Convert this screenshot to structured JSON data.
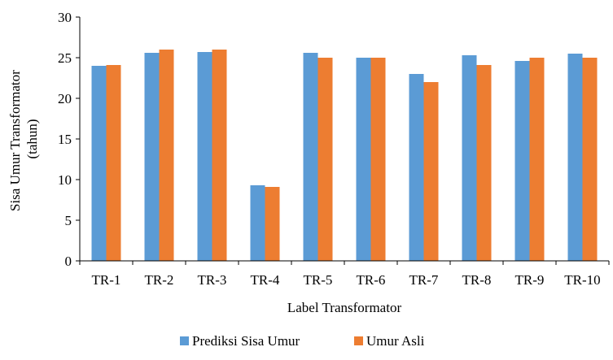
{
  "chart_data": {
    "type": "bar",
    "categories": [
      "TR-1",
      "TR-2",
      "TR-3",
      "TR-4",
      "TR-5",
      "TR-6",
      "TR-7",
      "TR-8",
      "TR-9",
      "TR-10"
    ],
    "series": [
      {
        "name": "Prediksi Sisa Umur",
        "color": "#5b9bd5",
        "values": [
          24.0,
          25.6,
          25.7,
          9.3,
          25.6,
          25.0,
          23.0,
          25.3,
          24.6,
          25.5
        ]
      },
      {
        "name": "Umur Asli",
        "color": "#ed7d31",
        "values": [
          24.1,
          26.0,
          26.0,
          9.1,
          25.0,
          25.0,
          22.0,
          24.1,
          25.0,
          25.0
        ]
      }
    ],
    "title": "",
    "xlabel": "Label Transformator",
    "ylabel_line1": "Sisa Umur Transformator",
    "ylabel_line2": "(tahun)",
    "ylim": [
      0,
      30
    ],
    "yticks": [
      0,
      5,
      10,
      15,
      20,
      25,
      30
    ],
    "grid": false,
    "legend_position": "bottom"
  }
}
